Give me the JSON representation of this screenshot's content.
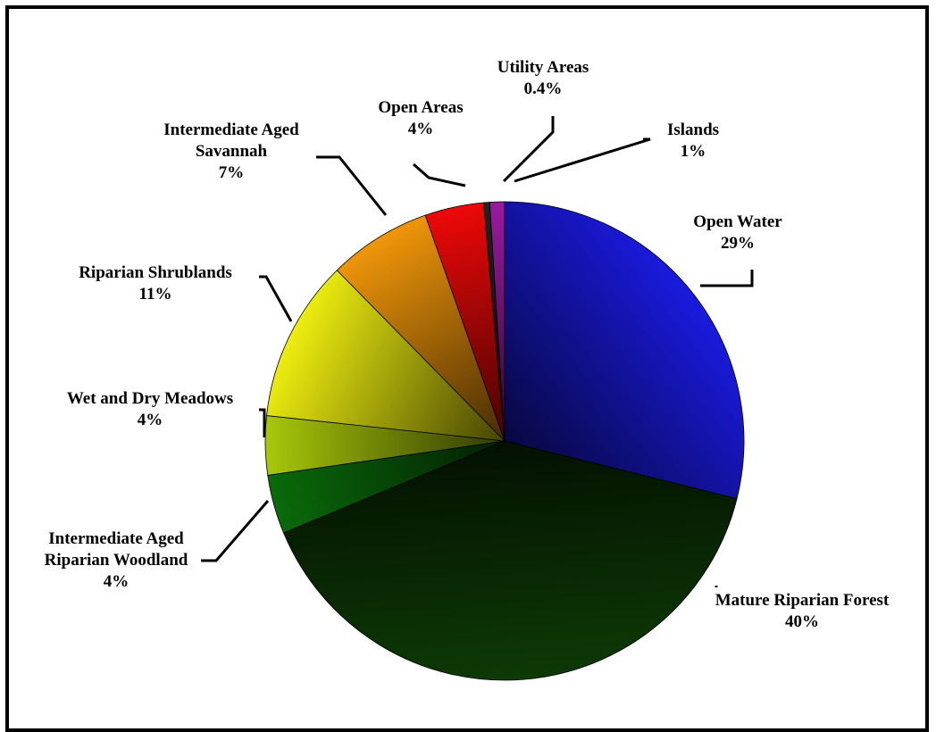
{
  "chart_data": {
    "type": "pie",
    "slices": [
      {
        "label": "Open Water",
        "lines": [
          "Open Water"
        ],
        "value": 29,
        "display": "29%",
        "color": "#1a1ae0"
      },
      {
        "label": "Mature Riparian Forest",
        "lines": [
          "Mature Riparian Forest"
        ],
        "value": 40,
        "display": "40%",
        "color": "#0d3a05"
      },
      {
        "label": "Intermediate Aged Riparian Woodland",
        "lines": [
          "Intermediate Aged",
          "Riparian Woodland"
        ],
        "value": 4,
        "display": "4%",
        "color": "#0a6a0a"
      },
      {
        "label": "Wet and Dry Meadows",
        "lines": [
          "Wet and Dry Meadows"
        ],
        "value": 4,
        "display": "4%",
        "color": "#a8c80a"
      },
      {
        "label": "Riparian Shrublands",
        "lines": [
          "Riparian Shrublands"
        ],
        "value": 11,
        "display": "11%",
        "color": "#eeee10"
      },
      {
        "label": "Intermediate Aged Savannah",
        "lines": [
          "Intermediate Aged",
          "Savannah"
        ],
        "value": 7,
        "display": "7%",
        "color": "#f0960a"
      },
      {
        "label": "Open Areas",
        "lines": [
          "Open Areas"
        ],
        "value": 4,
        "display": "4%",
        "color": "#ee0808"
      },
      {
        "label": "Utility Areas",
        "lines": [
          "Utility Areas"
        ],
        "value": 0.4,
        "display": "0.4%",
        "color": "#222222"
      },
      {
        "label": "Islands",
        "lines": [
          "Islands"
        ],
        "value": 1,
        "display": "1%",
        "color": "#9a1aa0"
      }
    ],
    "legend": "none"
  }
}
